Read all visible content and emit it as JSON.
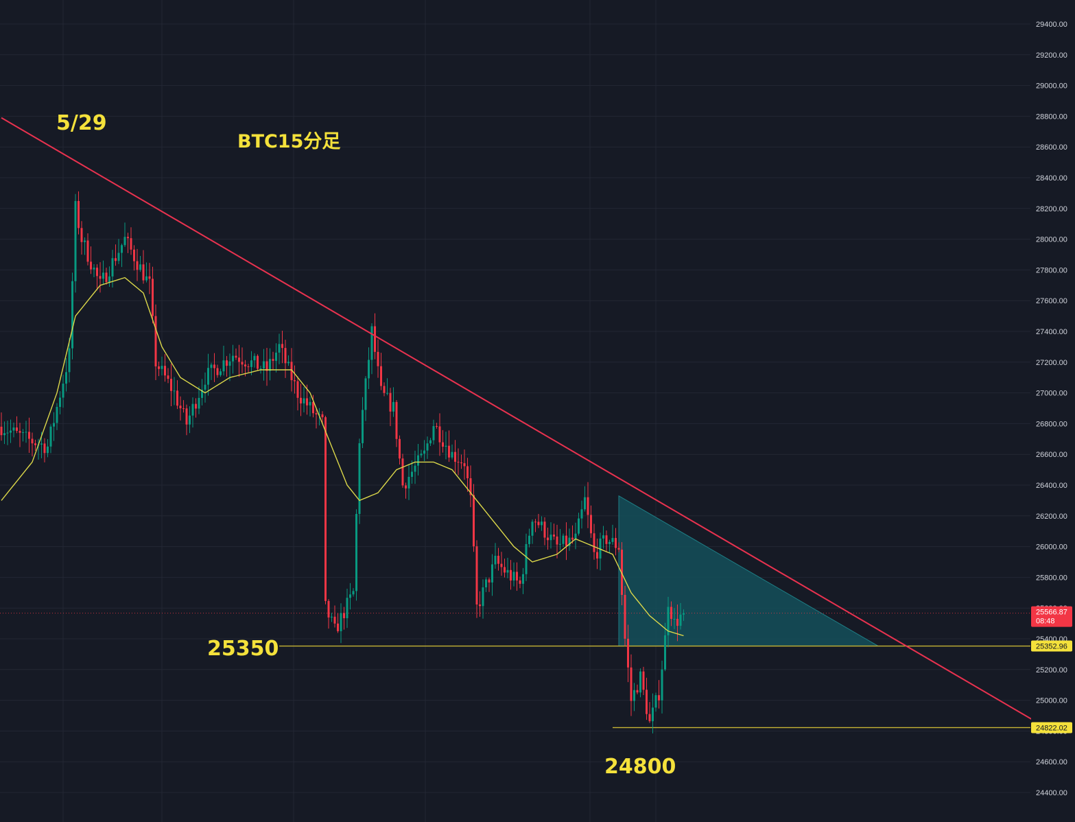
{
  "chart_data": {
    "type": "candlestick",
    "title": "BTC15分足",
    "timeframe_note": "15分足",
    "ylim": [
      24300,
      29500
    ],
    "y_axis_ticks": [
      "24400.00",
      "24600.00",
      "24800.00",
      "25000.00",
      "25200.00",
      "25400.00",
      "25600.00",
      "25800.00",
      "26000.00",
      "26200.00",
      "26400.00",
      "26600.00",
      "26800.00",
      "27000.00",
      "27200.00",
      "27400.00",
      "27600.00",
      "27800.00",
      "28000.00",
      "28200.00",
      "28400.00",
      "28600.00",
      "28800.00",
      "29000.00",
      "29200.00",
      "29400.00"
    ],
    "grid": true,
    "current_price": {
      "value": 25566.87,
      "label": "25566.87",
      "countdown": "08:48"
    },
    "tags": [
      {
        "label": "25352.96",
        "value": 25352.96
      },
      {
        "label": "24822.02",
        "value": 24822.02
      }
    ],
    "annotations": [
      {
        "text": "5/29",
        "role": "date"
      },
      {
        "text": "BTC15分足",
        "role": "title"
      },
      {
        "text": "25350",
        "role": "support"
      },
      {
        "text": "24800",
        "role": "low"
      }
    ],
    "trendline": {
      "from": {
        "bar": 0,
        "price": 28790
      },
      "to": {
        "bar": 342,
        "price": 24780
      }
    },
    "support_line": {
      "price": 25352.96,
      "from_bar": 90,
      "to_bar": 350
    },
    "low_line": {
      "price": 24822.02,
      "from_bar": 198,
      "to_bar": 350
    },
    "triangle_zone": {
      "apex_top": {
        "bar": 200,
        "price": 26330
      },
      "base": 25352.96,
      "end_bar": 284
    },
    "bars": 222,
    "anchors": [
      [
        0,
        26780
      ],
      [
        8,
        26700
      ],
      [
        15,
        26650
      ],
      [
        22,
        27250
      ],
      [
        24,
        28200
      ],
      [
        26,
        28000
      ],
      [
        32,
        27700
      ],
      [
        40,
        28000
      ],
      [
        48,
        27700
      ],
      [
        50,
        27200
      ],
      [
        56,
        27000
      ],
      [
        60,
        26800
      ],
      [
        66,
        27100
      ],
      [
        75,
        27250
      ],
      [
        86,
        27150
      ],
      [
        90,
        27300
      ],
      [
        96,
        27000
      ],
      [
        100,
        26900
      ],
      [
        104,
        26800
      ],
      [
        105,
        25600
      ],
      [
        108,
        25450
      ],
      [
        114,
        25700
      ],
      [
        116,
        26700
      ],
      [
        120,
        27400
      ],
      [
        123,
        27000
      ],
      [
        127,
        26900
      ],
      [
        130,
        26400
      ],
      [
        137,
        26600
      ],
      [
        140,
        26800
      ],
      [
        146,
        26600
      ],
      [
        150,
        26550
      ],
      [
        152,
        26300
      ],
      [
        154,
        25600
      ],
      [
        160,
        25900
      ],
      [
        168,
        25750
      ],
      [
        172,
        26200
      ],
      [
        180,
        26000
      ],
      [
        186,
        26050
      ],
      [
        189,
        26300
      ],
      [
        192,
        25950
      ],
      [
        196,
        26050
      ],
      [
        200,
        26000
      ],
      [
        202,
        25400
      ],
      [
        204,
        25000
      ],
      [
        207,
        25150
      ],
      [
        210,
        24850
      ],
      [
        213,
        25050
      ],
      [
        215,
        25400
      ],
      [
        216,
        25650
      ],
      [
        218,
        25500
      ],
      [
        221,
        25566.87
      ]
    ],
    "moving_average": [
      [
        0,
        26300
      ],
      [
        10,
        26550
      ],
      [
        18,
        27000
      ],
      [
        24,
        27500
      ],
      [
        32,
        27700
      ],
      [
        40,
        27750
      ],
      [
        46,
        27650
      ],
      [
        52,
        27300
      ],
      [
        58,
        27100
      ],
      [
        66,
        27000
      ],
      [
        74,
        27100
      ],
      [
        84,
        27150
      ],
      [
        94,
        27150
      ],
      [
        100,
        27000
      ],
      [
        106,
        26700
      ],
      [
        112,
        26400
      ],
      [
        116,
        26300
      ],
      [
        122,
        26350
      ],
      [
        128,
        26500
      ],
      [
        134,
        26550
      ],
      [
        140,
        26550
      ],
      [
        146,
        26500
      ],
      [
        152,
        26350
      ],
      [
        160,
        26150
      ],
      [
        166,
        26000
      ],
      [
        172,
        25900
      ],
      [
        180,
        25950
      ],
      [
        186,
        26050
      ],
      [
        192,
        26000
      ],
      [
        198,
        25950
      ],
      [
        204,
        25700
      ],
      [
        210,
        25550
      ],
      [
        216,
        25450
      ],
      [
        221,
        25420
      ]
    ]
  },
  "colors": {
    "background": "#161a25",
    "grid": "#232734",
    "up": "#089981",
    "down": "#f23645",
    "trendline": "#e8324f",
    "ma": "#dcd84a",
    "horizontal": "#c8b534",
    "zone_fill": "#14505a",
    "axis_text": "#d1d4dc",
    "note_text": "#f4e13b",
    "current_price_bg": "#f23645",
    "tag_bg": "#f4e13b"
  }
}
